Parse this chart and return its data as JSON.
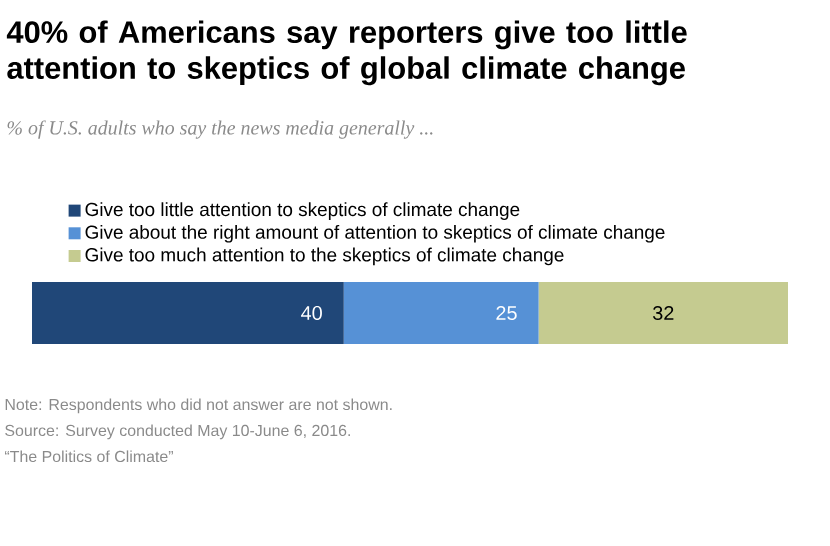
{
  "chart_data": {
    "type": "bar",
    "orientation": "horizontal",
    "stacked": true,
    "data_labels": true,
    "legend": "top left",
    "title": "40% of Americans say reporters give too little attention to skeptics of global climate change",
    "subtitle": "% of U.S. adults who say the news media generally ...",
    "categories": [
      null
    ],
    "series": [
      {
        "name": "Give too little attention to skeptics of climate change",
        "color": "#204778",
        "values": [
          40
        ]
      },
      {
        "name": "Give about the right amount of attention to skeptics of climate change",
        "color": "#5691d6",
        "values": [
          25
        ]
      },
      {
        "name": "Give too much attention to the skeptics of climate change",
        "color": "#c5cb90",
        "values": [
          32
        ]
      }
    ],
    "annotations": [
      "Note: Respondents who did not answer are not shown.",
      "Source: Survey conducted May 10-June 6, 2016.",
      "“The Politics of Climate”"
    ]
  }
}
